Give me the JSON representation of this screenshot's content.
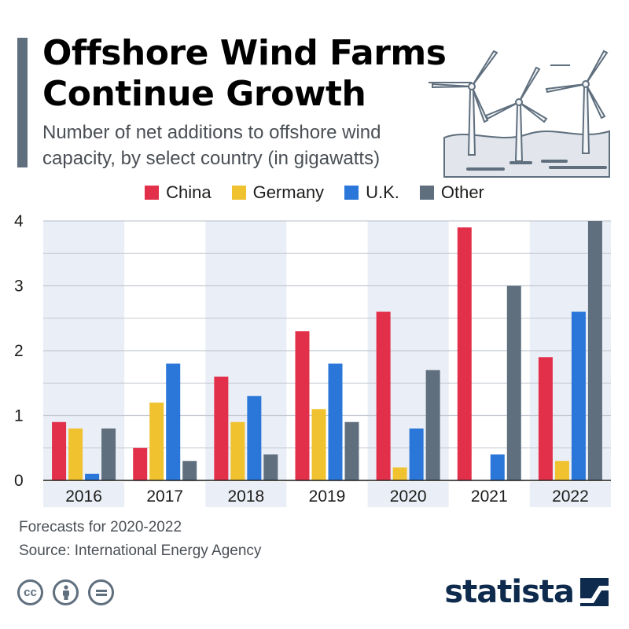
{
  "header": {
    "title_line1": "Offshore Wind Farms",
    "title_line2": "Continue Growth",
    "subtitle": "Number of net additions to offshore wind capacity, by select country (in gigawatts)"
  },
  "colors": {
    "china": "#e2304a",
    "germany": "#f0c230",
    "uk": "#2a77d9",
    "other": "#5f6f7e",
    "band": "#eaeef6",
    "grid": "#c4c9d1",
    "title_bar": "#5f6f7e",
    "brand": "#0e2b4d"
  },
  "chart_data": {
    "type": "bar",
    "title": "Offshore Wind Farms Continue Growth",
    "subtitle": "Number of net additions to offshore wind capacity, by select country (in gigawatts)",
    "categories": [
      "2016",
      "2017",
      "2018",
      "2019",
      "2020",
      "2021",
      "2022"
    ],
    "series": [
      {
        "name": "China",
        "color": "#e2304a",
        "values": [
          0.9,
          0.5,
          1.6,
          2.3,
          2.6,
          3.9,
          1.9
        ]
      },
      {
        "name": "Germany",
        "color": "#f0c230",
        "values": [
          0.8,
          1.2,
          0.9,
          1.1,
          0.2,
          0,
          0.3
        ]
      },
      {
        "name": "U.K.",
        "color": "#2a77d9",
        "values": [
          0.1,
          1.8,
          1.3,
          1.8,
          0.8,
          0.4,
          2.6
        ]
      },
      {
        "name": "Other",
        "color": "#5f6f7e",
        "values": [
          0.8,
          0.3,
          0.4,
          0.9,
          1.7,
          3.0,
          4.0
        ]
      }
    ],
    "ylim": [
      0,
      4
    ],
    "yticks": [
      "0",
      "1",
      "2",
      "3",
      "4"
    ],
    "grid": true,
    "legend": "top-center"
  },
  "footer": {
    "note": "Forecasts for 2020-2022",
    "source": "Source: International Energy Agency",
    "license_icons": [
      "cc-icon",
      "by-icon",
      "nd-icon"
    ],
    "brand": "statista"
  }
}
